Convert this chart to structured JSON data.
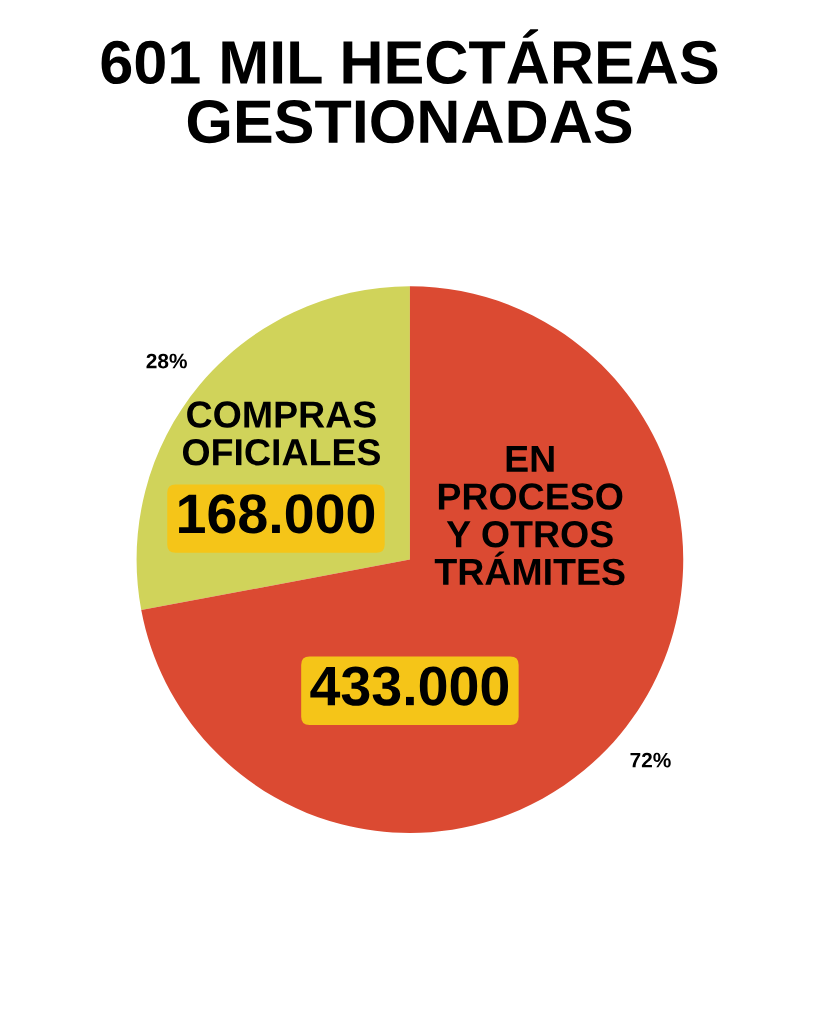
{
  "chart_data": {
    "type": "pie",
    "title": "601 MIL HECTÁREAS\nGESTIONADAS",
    "categories": [
      "COMPRAS\nOFICIALES",
      "EN\nPROCESO\nY OTROS\nTRÁMITES"
    ],
    "values": [
      168000,
      433000
    ],
    "value_labels": [
      "168.000",
      "433.000"
    ],
    "colors": [
      "#d0d35a",
      "#db4a32"
    ],
    "annotations": [
      "28%",
      "72%"
    ],
    "legend": false
  }
}
